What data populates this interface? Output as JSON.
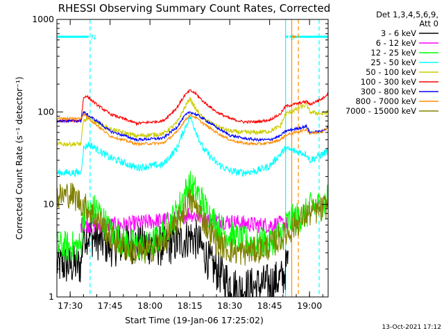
{
  "chart_data": {
    "type": "line",
    "title": "RHESSI Observing Summary Count Rates, Corrected",
    "xlabel": "Start Time (19-Jan-06 17:25:02)",
    "ylabel": "Corrected Count Rate (s⁻¹ detector⁻¹)",
    "x_unit": "minutes after 17:25:02",
    "xlim": [
      0,
      102
    ],
    "ylim": [
      1,
      1000
    ],
    "yscale": "log",
    "xticks": [
      {
        "label": "17:30",
        "value": 5
      },
      {
        "label": "17:45",
        "value": 20
      },
      {
        "label": "18:00",
        "value": 35
      },
      {
        "label": "18:15",
        "value": 50
      },
      {
        "label": "18:30",
        "value": 65
      },
      {
        "label": "18:45",
        "value": 80
      },
      {
        "label": "19:00",
        "value": 95
      }
    ],
    "yticks": [
      {
        "label": "1",
        "value": 1
      },
      {
        "label": "10",
        "value": 10
      },
      {
        "label": "100",
        "value": 100
      },
      {
        "label": "1000",
        "value": 1000
      }
    ],
    "legend_header": [
      "Det 1,3,4,5,6,9,",
      "Att 0"
    ],
    "legend_position": "right",
    "footer": "13-Oct-2021 17:12",
    "flags": [
      {
        "label": "N",
        "start": 0,
        "end": 12,
        "color": "#00ffff",
        "level": 650
      },
      {
        "label": "S",
        "start": 86,
        "end": 87,
        "color": "#00ffff",
        "level": 650
      },
      {
        "label": "",
        "start": 87.5,
        "end": 102,
        "color": "#00ffff",
        "level": 650
      },
      {
        "label": "",
        "start": 88.5,
        "end": 90,
        "color": "#ff8c00",
        "level": 650
      }
    ],
    "vlines": [
      {
        "x": 12.5,
        "color": "#00ffff",
        "style": "dashed"
      },
      {
        "x": 86,
        "color": "#00ffff",
        "style": "solid"
      },
      {
        "x": 88.3,
        "color": "#ff8c00",
        "style": "solid"
      },
      {
        "x": 90.8,
        "color": "#ff8c00",
        "style": "dashed"
      },
      {
        "x": 98.6,
        "color": "#00ffff",
        "style": "dashed"
      }
    ],
    "series": [
      {
        "name": "3 - 6 keV",
        "color": "#000000",
        "noise": 0.45,
        "x": [
          0,
          9,
          10,
          20,
          30,
          40,
          47,
          50,
          53,
          58,
          63,
          68,
          75,
          80,
          85,
          87
        ],
        "y": [
          2.2,
          2.2,
          5,
          3.5,
          3.8,
          3.5,
          4,
          4.5,
          4,
          2.2,
          1.6,
          1.2,
          1.3,
          1.4,
          1.6,
          2.5
        ]
      },
      {
        "name": "6 - 12 keV",
        "color": "#ff00ff",
        "noise": 0.18,
        "x": [
          9,
          15,
          25,
          35,
          45,
          50,
          55,
          65,
          75,
          80,
          85,
          87
        ],
        "y": [
          6,
          6,
          6,
          6.5,
          7,
          8,
          7,
          6.5,
          6,
          6,
          6.2,
          6
        ]
      },
      {
        "name": "12 - 25 keV",
        "color": "#00ff00",
        "noise": 0.35,
        "x": [
          0,
          9,
          10,
          15,
          20,
          25,
          30,
          35,
          40,
          45,
          48,
          50,
          53,
          56,
          60,
          65,
          70,
          75,
          80,
          85,
          87,
          94,
          95,
          100,
          102
        ],
        "y": [
          3.5,
          3.5,
          8,
          9,
          5,
          4,
          3.5,
          3.5,
          5,
          8,
          13,
          16,
          13,
          9,
          6,
          4.5,
          4,
          3.8,
          4,
          5,
          6.5,
          8,
          9,
          10,
          12
        ]
      },
      {
        "name": "25 - 50 keV",
        "color": "#00ffff",
        "noise": 0.08,
        "x": [
          0,
          9,
          10,
          12,
          20,
          30,
          40,
          45,
          48,
          50,
          52,
          55,
          60,
          65,
          70,
          75,
          80,
          84,
          86,
          94,
          95,
          100,
          102
        ],
        "y": [
          22,
          22,
          40,
          45,
          32,
          25,
          27,
          40,
          65,
          90,
          65,
          40,
          28,
          23,
          22,
          23,
          26,
          35,
          40,
          35,
          30,
          35,
          38
        ]
      },
      {
        "name": "50 - 100 keV",
        "color": "#cccc00",
        "noise": 0.05,
        "x": [
          0,
          9,
          10,
          12,
          20,
          30,
          40,
          45,
          48,
          50,
          52,
          55,
          60,
          65,
          70,
          75,
          80,
          84,
          86,
          94,
          95,
          100,
          102
        ],
        "y": [
          45,
          45,
          80,
          85,
          65,
          55,
          58,
          75,
          110,
          140,
          110,
          85,
          70,
          62,
          60,
          60,
          62,
          70,
          95,
          120,
          100,
          95,
          100
        ]
      },
      {
        "name": "100 - 300 keV",
        "color": "#ff0000",
        "noise": 0.03,
        "x": [
          0,
          9,
          10,
          11,
          15,
          20,
          30,
          40,
          45,
          48,
          50,
          52,
          55,
          60,
          65,
          70,
          75,
          80,
          84,
          86,
          94,
          95,
          100,
          102
        ],
        "y": [
          80,
          80,
          140,
          150,
          120,
          95,
          75,
          80,
          110,
          150,
          170,
          160,
          130,
          100,
          85,
          78,
          78,
          82,
          95,
          115,
          130,
          120,
          140,
          160
        ]
      },
      {
        "name": "300 - 800 keV",
        "color": "#0000ff",
        "noise": 0.03,
        "x": [
          0,
          9,
          10,
          11,
          15,
          20,
          30,
          40,
          45,
          48,
          50,
          52,
          55,
          60,
          65,
          70,
          75,
          80,
          84,
          86,
          94,
          95,
          100,
          102
        ],
        "y": [
          80,
          80,
          100,
          95,
          80,
          62,
          50,
          52,
          68,
          90,
          100,
          95,
          85,
          68,
          56,
          52,
          50,
          50,
          55,
          62,
          70,
          60,
          62,
          70
        ]
      },
      {
        "name": "800 - 7000 keV",
        "color": "#ff8c00",
        "noise": 0.03,
        "x": [
          0,
          9,
          10,
          11,
          15,
          20,
          30,
          40,
          45,
          48,
          50,
          52,
          55,
          60,
          65,
          70,
          75,
          80,
          84,
          86,
          94,
          95,
          100,
          102
        ],
        "y": [
          85,
          85,
          95,
          90,
          72,
          55,
          45,
          46,
          60,
          80,
          92,
          88,
          75,
          60,
          50,
          46,
          45,
          46,
          50,
          56,
          65,
          58,
          62,
          68
        ]
      },
      {
        "name": "7000 - 15000 keV",
        "color": "#808000",
        "noise": 0.3,
        "x": [
          0,
          5,
          10,
          15,
          20,
          25,
          30,
          35,
          40,
          45,
          48,
          50,
          53,
          56,
          60,
          65,
          70,
          75,
          80,
          85,
          87,
          94,
          95,
          100,
          102
        ],
        "y": [
          12,
          13,
          10,
          7,
          4.5,
          3.5,
          3,
          3.2,
          4,
          6,
          9,
          11,
          9,
          6,
          4,
          3.2,
          3,
          3.2,
          3.5,
          4.5,
          5,
          8,
          8,
          9,
          10
        ]
      }
    ]
  }
}
